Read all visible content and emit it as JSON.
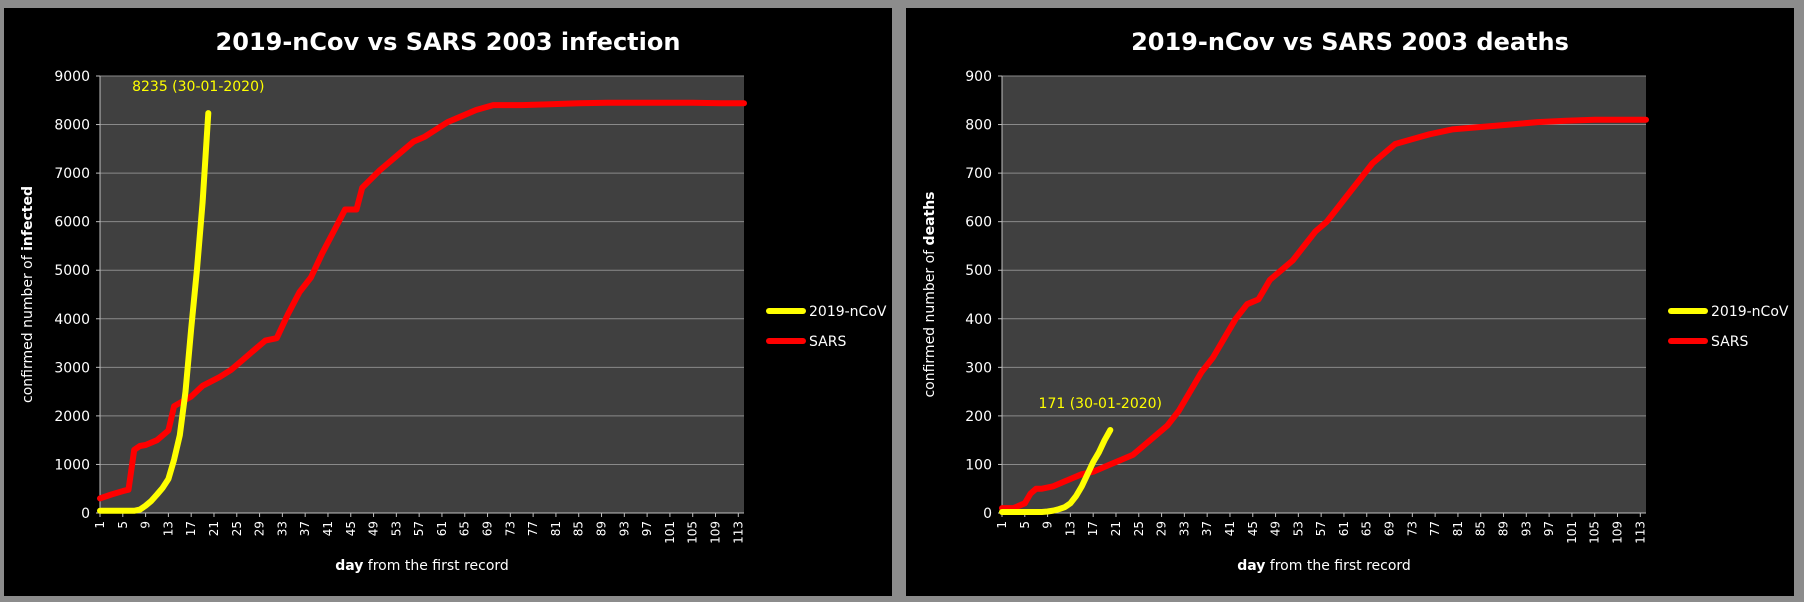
{
  "chart_data": [
    {
      "type": "line",
      "title": "2019-nCov vs SARS 2003 infection",
      "ylabel_prefix": "confirmed number of ",
      "ylabel_bold": "infected",
      "xlabel_bold": "day",
      "xlabel_rest": " from the first record",
      "ylim": [
        0,
        9000
      ],
      "yticks": [
        "0",
        "1000",
        "2000",
        "3000",
        "4000",
        "5000",
        "6000",
        "7000",
        "8000",
        "9000"
      ],
      "xlim": [
        1,
        114
      ],
      "xticks": [
        "1",
        "5",
        "9",
        "13",
        "17",
        "21",
        "25",
        "29",
        "33",
        "37",
        "41",
        "45",
        "49",
        "53",
        "57",
        "61",
        "65",
        "69",
        "73",
        "77",
        "81",
        "85",
        "89",
        "93",
        "97",
        "101",
        "105",
        "109",
        "113"
      ],
      "annotation": "8235 (30-01-2020)",
      "legend": "right",
      "grid": true,
      "colors": {
        "plot_bg": "#404040",
        "grid": "#8a8a8a",
        "2019-nCoV": "#ffff00",
        "SARS": "#ff0000"
      },
      "series": [
        {
          "name": "2019-nCoV",
          "x": [
            1,
            2,
            3,
            4,
            5,
            6,
            7,
            8,
            9,
            10,
            11,
            12,
            13,
            14,
            15,
            16,
            17,
            18,
            19,
            20
          ],
          "y": [
            45,
            45,
            45,
            45,
            45,
            45,
            45,
            70,
            150,
            250,
            380,
            520,
            700,
            1100,
            1600,
            2500,
            3800,
            5000,
            6400,
            8235
          ]
        },
        {
          "name": "SARS",
          "x": [
            1,
            3,
            5,
            6,
            7,
            8,
            9,
            11,
            13,
            14,
            17,
            19,
            22,
            24,
            26,
            28,
            30,
            32,
            34,
            36,
            38,
            40,
            42,
            44,
            46,
            47,
            50,
            52,
            54,
            56,
            58,
            60,
            62,
            64,
            67,
            70,
            75,
            80,
            85,
            90,
            95,
            100,
            105,
            110,
            114
          ],
          "y": [
            300,
            380,
            450,
            480,
            1300,
            1380,
            1400,
            1500,
            1700,
            2200,
            2400,
            2620,
            2800,
            2950,
            3150,
            3350,
            3550,
            3600,
            4100,
            4550,
            4850,
            5350,
            5800,
            6250,
            6250,
            6700,
            7050,
            7250,
            7450,
            7650,
            7750,
            7900,
            8050,
            8150,
            8300,
            8400,
            8400,
            8420,
            8440,
            8450,
            8450,
            8450,
            8450,
            8440,
            8440
          ]
        }
      ]
    },
    {
      "type": "line",
      "title": "2019-nCov vs SARS 2003 deaths",
      "ylabel_prefix": "confirmed number of ",
      "ylabel_bold": "deaths",
      "xlabel_bold": "day",
      "xlabel_rest": " from the first record",
      "ylim": [
        0,
        900
      ],
      "yticks": [
        "0",
        "100",
        "200",
        "300",
        "400",
        "500",
        "600",
        "700",
        "800",
        "900"
      ],
      "xlim": [
        1,
        114
      ],
      "xticks": [
        "1",
        "5",
        "9",
        "13",
        "17",
        "21",
        "25",
        "29",
        "33",
        "37",
        "41",
        "45",
        "49",
        "53",
        "57",
        "61",
        "65",
        "69",
        "73",
        "77",
        "81",
        "85",
        "89",
        "93",
        "97",
        "101",
        "105",
        "109",
        "113"
      ],
      "annotation": "171 (30-01-2020)",
      "legend": "right",
      "grid": true,
      "colors": {
        "plot_bg": "#404040",
        "grid": "#8a8a8a",
        "2019-nCoV": "#ffff00",
        "SARS": "#ff0000"
      },
      "series": [
        {
          "name": "2019-nCoV",
          "x": [
            1,
            2,
            3,
            4,
            5,
            6,
            7,
            8,
            9,
            10,
            11,
            12,
            13,
            14,
            15,
            16,
            17,
            18,
            19,
            20
          ],
          "y": [
            2,
            2,
            2,
            2,
            2,
            2,
            2,
            2,
            3,
            5,
            8,
            12,
            20,
            35,
            55,
            80,
            105,
            125,
            150,
            171
          ]
        },
        {
          "name": "SARS",
          "x": [
            1,
            3,
            4,
            5,
            6,
            7,
            8,
            10,
            12,
            13,
            15,
            17,
            20,
            22,
            24,
            26,
            28,
            30,
            32,
            34,
            36,
            38,
            40,
            42,
            44,
            46,
            48,
            50,
            52,
            54,
            56,
            58,
            60,
            62,
            64,
            66,
            68,
            70,
            73,
            76,
            80,
            85,
            90,
            95,
            100,
            105,
            110,
            114
          ],
          "y": [
            10,
            10,
            15,
            20,
            40,
            50,
            50,
            55,
            65,
            70,
            80,
            85,
            100,
            110,
            120,
            140,
            160,
            180,
            210,
            250,
            290,
            320,
            360,
            400,
            430,
            440,
            480,
            500,
            520,
            550,
            580,
            600,
            630,
            660,
            690,
            720,
            740,
            760,
            770,
            780,
            790,
            795,
            800,
            805,
            808,
            810,
            810,
            810
          ]
        }
      ]
    }
  ]
}
